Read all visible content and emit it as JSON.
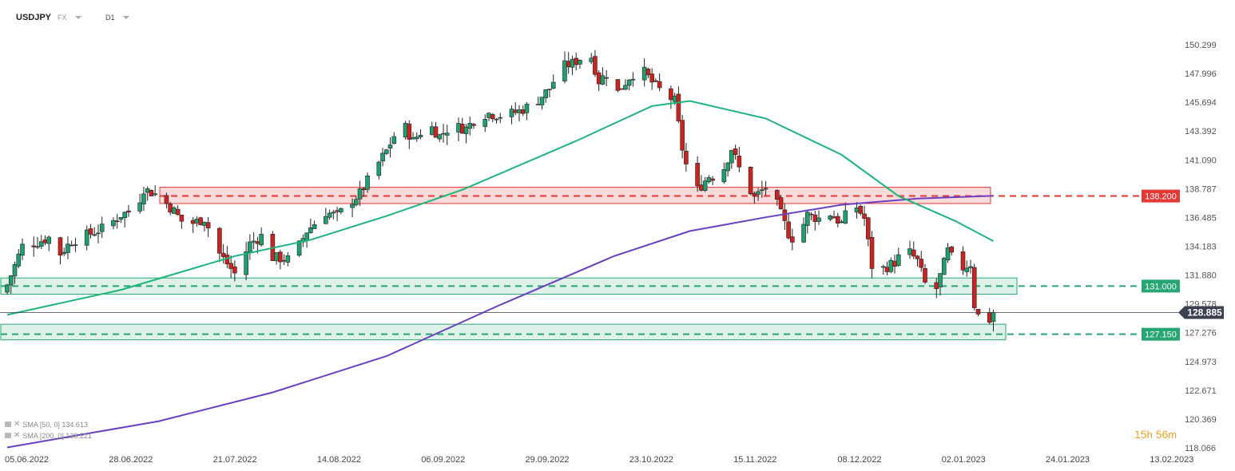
{
  "header": {
    "symbol": "USDJPY",
    "market": "FX",
    "timeframe": "D1"
  },
  "legend": [
    {
      "label": "SMA [50, 0] 134.613",
      "color": "#1db47a"
    },
    {
      "label": "SMA [200, 0] 138.221",
      "color": "#6a3fc2"
    }
  ],
  "timer": {
    "hours": "15",
    "h_unit": "h",
    "minutes": "56",
    "m_unit": "m"
  },
  "colors": {
    "bull": "#1f9e6e",
    "bear": "#cc2222",
    "resistance": "#e53935",
    "support": "#26a672",
    "price_tag": "#3c4150"
  },
  "chart_data": {
    "type": "candlestick",
    "title": "",
    "y_range": [
      118.066,
      151.5
    ],
    "y_ticks": [
      "150.299",
      "147.996",
      "145.694",
      "143.392",
      "141.090",
      "138.787",
      "136.485",
      "134.183",
      "131.880",
      "129.578",
      "127.276",
      "124.973",
      "122.671",
      "120.369",
      "118.066"
    ],
    "x_ticks": [
      "05.06.2022",
      "28.06.2022",
      "21.07.2022",
      "14.08.2022",
      "06.09.2022",
      "29.09.2022",
      "23.10.2022",
      "15.11.2022",
      "08.12.2022",
      "02.01.2023",
      "24.01.2023",
      "13.02.2023"
    ],
    "last_price": "128.885",
    "levels": [
      {
        "label": "138.200",
        "value": 138.2,
        "zone": [
          137.6,
          138.9
        ],
        "kind": "resistance"
      },
      {
        "label": "131.000",
        "value": 131.0,
        "zone": [
          130.35,
          131.65
        ],
        "kind": "support"
      },
      {
        "label": "127.150",
        "value": 127.15,
        "zone": [
          126.7,
          127.95
        ],
        "kind": "support"
      }
    ],
    "sma50_last": 134.613,
    "sma200_last": 138.221,
    "series_path": [
      {
        "day": 0,
        "close": 131.1
      },
      {
        "day": 4,
        "close": 134.2
      },
      {
        "day": 8,
        "close": 134.5
      },
      {
        "day": 12,
        "close": 135.0
      },
      {
        "day": 14,
        "close": 133.6
      },
      {
        "day": 17,
        "close": 134.6
      },
      {
        "day": 22,
        "close": 135.2
      },
      {
        "day": 26,
        "close": 135.7
      },
      {
        "day": 30,
        "close": 136.7
      },
      {
        "day": 34,
        "close": 137.2
      },
      {
        "day": 36,
        "close": 138.8
      },
      {
        "day": 40,
        "close": 138.2
      },
      {
        "day": 44,
        "close": 137.0
      },
      {
        "day": 47,
        "close": 135.8
      },
      {
        "day": 52,
        "close": 136.4
      },
      {
        "day": 56,
        "close": 133.6
      },
      {
        "day": 60,
        "close": 132.0
      },
      {
        "day": 64,
        "close": 134.4
      },
      {
        "day": 68,
        "close": 135.2
      },
      {
        "day": 70,
        "close": 133.3
      },
      {
        "day": 75,
        "close": 133.1
      },
      {
        "day": 79,
        "close": 135.4
      },
      {
        "day": 84,
        "close": 136.9
      },
      {
        "day": 87,
        "close": 136.6
      },
      {
        "day": 90,
        "close": 137.6
      },
      {
        "day": 93,
        "close": 138.4
      },
      {
        "day": 97,
        "close": 140.4
      },
      {
        "day": 100,
        "close": 141.8
      },
      {
        "day": 104,
        "close": 144.2
      },
      {
        "day": 107,
        "close": 142.6
      },
      {
        "day": 111,
        "close": 144.0
      },
      {
        "day": 114,
        "close": 143.0
      },
      {
        "day": 117,
        "close": 143.8
      },
      {
        "day": 121,
        "close": 143.6
      },
      {
        "day": 124,
        "close": 144.6
      },
      {
        "day": 127,
        "close": 144.8
      },
      {
        "day": 131,
        "close": 144.6
      },
      {
        "day": 135,
        "close": 145.0
      },
      {
        "day": 139,
        "close": 145.6
      },
      {
        "day": 143,
        "close": 146.8
      },
      {
        "day": 146,
        "close": 148.5
      },
      {
        "day": 149,
        "close": 148.8
      },
      {
        "day": 151,
        "close": 149.2
      },
      {
        "day": 153,
        "close": 150.3
      },
      {
        "day": 156,
        "close": 147.4
      },
      {
        "day": 159,
        "close": 148.3
      },
      {
        "day": 161,
        "close": 146.5
      },
      {
        "day": 164,
        "close": 147.7
      },
      {
        "day": 167,
        "close": 148.5
      },
      {
        "day": 170,
        "close": 147.3
      },
      {
        "day": 173,
        "close": 146.4
      },
      {
        "day": 176,
        "close": 145.8
      },
      {
        "day": 178,
        "close": 142.0
      },
      {
        "day": 180,
        "close": 139.4
      },
      {
        "day": 182,
        "close": 138.7
      },
      {
        "day": 185,
        "close": 139.8
      },
      {
        "day": 188,
        "close": 139.7
      },
      {
        "day": 191,
        "close": 142.0
      },
      {
        "day": 194,
        "close": 139.6
      },
      {
        "day": 197,
        "close": 138.1
      },
      {
        "day": 200,
        "close": 138.9
      },
      {
        "day": 203,
        "close": 137.5
      },
      {
        "day": 206,
        "close": 135.2
      },
      {
        "day": 208,
        "close": 134.5
      },
      {
        "day": 211,
        "close": 136.7
      },
      {
        "day": 214,
        "close": 136.4
      },
      {
        "day": 217,
        "close": 136.8
      },
      {
        "day": 220,
        "close": 136.0
      },
      {
        "day": 223,
        "close": 137.8
      },
      {
        "day": 226,
        "close": 136.4
      },
      {
        "day": 228,
        "close": 132.6
      },
      {
        "day": 231,
        "close": 132.4
      },
      {
        "day": 234,
        "close": 132.9
      },
      {
        "day": 237,
        "close": 134.0
      },
      {
        "day": 240,
        "close": 133.0
      },
      {
        "day": 242,
        "close": 131.2
      },
      {
        "day": 245,
        "close": 130.8
      },
      {
        "day": 248,
        "close": 133.8
      },
      {
        "day": 251,
        "close": 132.3
      },
      {
        "day": 254,
        "close": 132.8
      },
      {
        "day": 255,
        "close": 129.5
      },
      {
        "day": 257,
        "close": 127.8
      },
      {
        "day": 259,
        "close": 128.3
      },
      {
        "day": 260,
        "close": 128.885
      }
    ]
  }
}
